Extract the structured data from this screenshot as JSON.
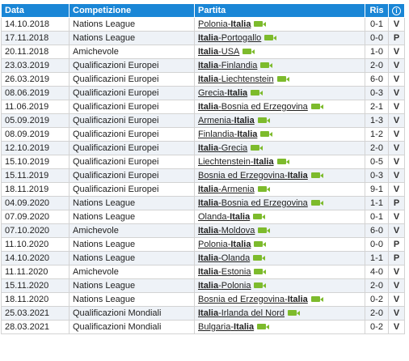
{
  "headers": {
    "date": "Data",
    "competition": "Competizione",
    "match": "Partita",
    "score": "Ris",
    "result_icon": "i"
  },
  "rows": [
    {
      "date": "14.10.2018",
      "competition": "Nations League",
      "home": "Polonia",
      "away": "Italia",
      "italy": "away",
      "score": "0-1",
      "result": "V"
    },
    {
      "date": "17.11.2018",
      "competition": "Nations League",
      "home": "Italia",
      "away": "Portogallo",
      "italy": "home",
      "score": "0-0",
      "result": "P"
    },
    {
      "date": "20.11.2018",
      "competition": "Amichevole",
      "home": "Italia",
      "away": "USA",
      "italy": "home",
      "score": "1-0",
      "result": "V"
    },
    {
      "date": "23.03.2019",
      "competition": "Qualificazioni Europei",
      "home": "Italia",
      "away": "Finlandia",
      "italy": "home",
      "score": "2-0",
      "result": "V"
    },
    {
      "date": "26.03.2019",
      "competition": "Qualificazioni Europei",
      "home": "Italia",
      "away": "Liechtenstein",
      "italy": "home",
      "score": "6-0",
      "result": "V"
    },
    {
      "date": "08.06.2019",
      "competition": "Qualificazioni Europei",
      "home": "Grecia",
      "away": "Italia",
      "italy": "away",
      "score": "0-3",
      "result": "V"
    },
    {
      "date": "11.06.2019",
      "competition": "Qualificazioni Europei",
      "home": "Italia",
      "away": "Bosnia ed Erzegovina",
      "italy": "home",
      "score": "2-1",
      "result": "V"
    },
    {
      "date": "05.09.2019",
      "competition": "Qualificazioni Europei",
      "home": "Armenia",
      "away": "Italia",
      "italy": "away",
      "score": "1-3",
      "result": "V"
    },
    {
      "date": "08.09.2019",
      "competition": "Qualificazioni Europei",
      "home": "Finlandia",
      "away": "Italia",
      "italy": "away",
      "score": "1-2",
      "result": "V"
    },
    {
      "date": "12.10.2019",
      "competition": "Qualificazioni Europei",
      "home": "Italia",
      "away": "Grecia",
      "italy": "home",
      "score": "2-0",
      "result": "V"
    },
    {
      "date": "15.10.2019",
      "competition": "Qualificazioni Europei",
      "home": "Liechtenstein",
      "away": "Italia",
      "italy": "away",
      "score": "0-5",
      "result": "V"
    },
    {
      "date": "15.11.2019",
      "competition": "Qualificazioni Europei",
      "home": "Bosnia ed Erzegovina",
      "away": "Italia",
      "italy": "away",
      "score": "0-3",
      "result": "V"
    },
    {
      "date": "18.11.2019",
      "competition": "Qualificazioni Europei",
      "home": "Italia",
      "away": "Armenia",
      "italy": "home",
      "score": "9-1",
      "result": "V"
    },
    {
      "date": "04.09.2020",
      "competition": "Nations League",
      "home": "Italia",
      "away": "Bosnia ed Erzegovina",
      "italy": "home",
      "score": "1-1",
      "result": "P"
    },
    {
      "date": "07.09.2020",
      "competition": "Nations League",
      "home": "Olanda",
      "away": "Italia",
      "italy": "away",
      "score": "0-1",
      "result": "V"
    },
    {
      "date": "07.10.2020",
      "competition": "Amichevole",
      "home": "Italia",
      "away": "Moldova",
      "italy": "home",
      "score": "6-0",
      "result": "V"
    },
    {
      "date": "11.10.2020",
      "competition": "Nations League",
      "home": "Polonia",
      "away": "Italia",
      "italy": "away",
      "score": "0-0",
      "result": "P"
    },
    {
      "date": "14.10.2020",
      "competition": "Nations League",
      "home": "Italia",
      "away": "Olanda",
      "italy": "home",
      "score": "1-1",
      "result": "P"
    },
    {
      "date": "11.11.2020",
      "competition": "Amichevole",
      "home": "Italia",
      "away": "Estonia",
      "italy": "home",
      "score": "4-0",
      "result": "V"
    },
    {
      "date": "15.11.2020",
      "competition": "Nations League",
      "home": "Italia",
      "away": "Polonia",
      "italy": "home",
      "score": "2-0",
      "result": "V"
    },
    {
      "date": "18.11.2020",
      "competition": "Nations League",
      "home": "Bosnia ed Erzegovina",
      "away": "Italia",
      "italy": "away",
      "score": "0-2",
      "result": "V"
    },
    {
      "date": "25.03.2021",
      "competition": "Qualificazioni Mondiali",
      "home": "Italia",
      "away": "Irlanda del Nord",
      "italy": "home",
      "score": "2-0",
      "result": "V"
    },
    {
      "date": "28.03.2021",
      "competition": "Qualificazioni Mondiali",
      "home": "Bulgaria",
      "away": "Italia",
      "italy": "away",
      "score": "0-2",
      "result": "V"
    }
  ],
  "colors": {
    "header_bg": "#1a86d6",
    "row_alt_bg": "#eef2f7",
    "video_icon": "#7dbb2c"
  }
}
